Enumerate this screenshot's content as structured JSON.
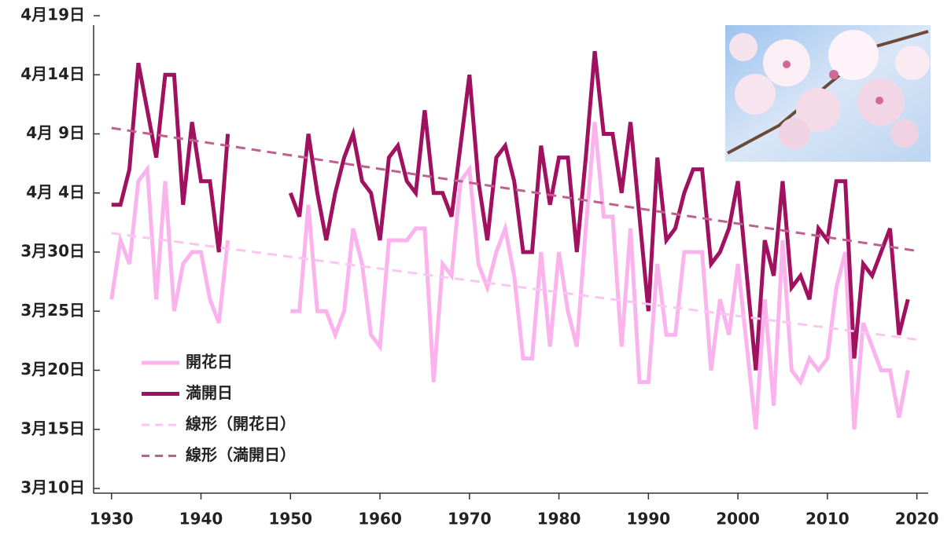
{
  "chart_data": {
    "type": "line",
    "x": [
      1930,
      1931,
      1932,
      1933,
      1934,
      1935,
      1936,
      1937,
      1938,
      1939,
      1940,
      1941,
      1942,
      1943,
      1944,
      1945,
      1946,
      1947,
      1948,
      1949,
      1950,
      1951,
      1952,
      1953,
      1954,
      1955,
      1956,
      1957,
      1958,
      1959,
      1960,
      1961,
      1962,
      1963,
      1964,
      1965,
      1966,
      1967,
      1968,
      1969,
      1970,
      1971,
      1972,
      1973,
      1974,
      1975,
      1976,
      1977,
      1978,
      1979,
      1980,
      1981,
      1982,
      1983,
      1984,
      1985,
      1986,
      1987,
      1988,
      1989,
      1990,
      1991,
      1992,
      1993,
      1994,
      1995,
      1996,
      1997,
      1998,
      1999,
      2000,
      2001,
      2002,
      2003,
      2004,
      2005,
      2006,
      2007,
      2008,
      2009,
      2010,
      2011,
      2012,
      2013,
      2014,
      2015,
      2016,
      2017,
      2018,
      2019
    ],
    "series": [
      {
        "name": "開花日",
        "color": "#fbb3ee",
        "values": [
          26,
          31,
          29,
          36,
          37,
          26,
          36,
          25,
          29,
          30,
          30,
          26,
          24,
          31,
          null,
          null,
          null,
          null,
          null,
          null,
          25,
          25,
          34,
          25,
          25,
          23,
          25,
          32,
          29,
          23,
          22,
          31,
          31,
          31,
          32,
          32,
          19,
          29,
          28,
          36,
          37,
          29,
          27,
          30,
          32,
          28,
          21,
          21,
          30,
          22,
          30,
          25,
          22,
          32,
          41,
          33,
          33,
          22,
          32,
          19,
          19,
          29,
          23,
          23,
          30,
          30,
          30,
          20,
          26,
          23,
          29,
          22,
          15,
          26,
          17,
          31,
          20,
          19,
          21,
          20,
          21,
          27,
          30,
          15,
          24,
          22,
          20,
          20,
          16,
          20
        ]
      },
      {
        "name": "満開日",
        "color": "#a0115f",
        "values": [
          34,
          34,
          37,
          46,
          42,
          38,
          45,
          45,
          34,
          41,
          36,
          36,
          30,
          40,
          null,
          null,
          null,
          null,
          null,
          null,
          35,
          33,
          40,
          35,
          31,
          35,
          38,
          40,
          36,
          35,
          31,
          38,
          39,
          36,
          35,
          42,
          35,
          35,
          33,
          39,
          45,
          36,
          31,
          38,
          39,
          36,
          30,
          30,
          39,
          34,
          38,
          38,
          30,
          38,
          47,
          40,
          40,
          35,
          41,
          33,
          25,
          38,
          31,
          32,
          35,
          37,
          37,
          29,
          30,
          32,
          36,
          28,
          20,
          31,
          28,
          36,
          27,
          28,
          26,
          32,
          31,
          36,
          36,
          21,
          29,
          28,
          30,
          32,
          23,
          26
        ]
      },
      {
        "name": "線形（開花日）",
        "color": "#fbc6f2",
        "dash": true,
        "x": [
          1930,
          2020
        ],
        "values": [
          31.6,
          22.6
        ]
      },
      {
        "name": "線形（満開日）",
        "color": "#c0608f",
        "dash": true,
        "x": [
          1930,
          2020
        ],
        "values": [
          40.5,
          30.1
        ]
      }
    ],
    "xlim": [
      1928,
      2021
    ],
    "xticks": [
      1930,
      1940,
      1950,
      1960,
      1970,
      1980,
      1990,
      2000,
      2010,
      2020
    ],
    "ylim": [
      10,
      50
    ],
    "yticks": [
      {
        "value": 10,
        "label": "3月10日"
      },
      {
        "value": 15,
        "label": "3月15日"
      },
      {
        "value": 20,
        "label": "3月20日"
      },
      {
        "value": 25,
        "label": "3月25日"
      },
      {
        "value": 30,
        "label": "3月30日"
      },
      {
        "value": 35,
        "label": "4月 4日"
      },
      {
        "value": 40,
        "label": "4月 9日"
      },
      {
        "value": 45,
        "label": "4月14日"
      },
      {
        "value": 50,
        "label": "4月19日"
      }
    ],
    "grid": false
  }
}
